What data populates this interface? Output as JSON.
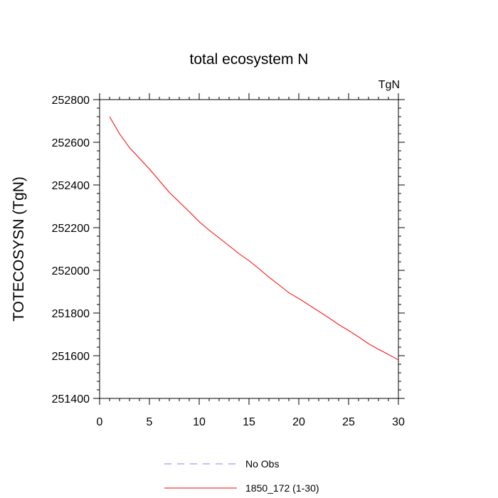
{
  "chart_data": {
    "type": "line",
    "title": "total ecosystem N",
    "units_label": "TgN",
    "xlabel": "",
    "ylabel": "TOTECOSYSN  (TgN)",
    "xlim": [
      0,
      30
    ],
    "ylim": [
      251400,
      252800
    ],
    "x_ticks": [
      0,
      5,
      10,
      15,
      20,
      25,
      30
    ],
    "y_ticks": [
      251400,
      251600,
      251800,
      252000,
      252200,
      252400,
      252600,
      252800
    ],
    "grid": false,
    "legend_position": "bottom",
    "series": [
      {
        "name": "No Obs",
        "color": "#8080ff",
        "style": "dashed",
        "x": [],
        "y": []
      },
      {
        "name": "1850_172 (1-30)",
        "color": "#ff0000",
        "style": "solid",
        "x": [
          1,
          2,
          3,
          4,
          5,
          6,
          7,
          8,
          9,
          10,
          11,
          12,
          13,
          14,
          15,
          16,
          17,
          18,
          19,
          20,
          21,
          22,
          23,
          24,
          25,
          26,
          27,
          28,
          29,
          30
        ],
        "y": [
          252720,
          252640,
          252575,
          252525,
          252475,
          252420,
          252365,
          252320,
          252275,
          252228,
          252188,
          252152,
          252115,
          252078,
          252045,
          252008,
          251968,
          251932,
          251895,
          251868,
          251838,
          251808,
          251778,
          251746,
          251718,
          251688,
          251656,
          251630,
          251606,
          251580
        ]
      }
    ]
  }
}
